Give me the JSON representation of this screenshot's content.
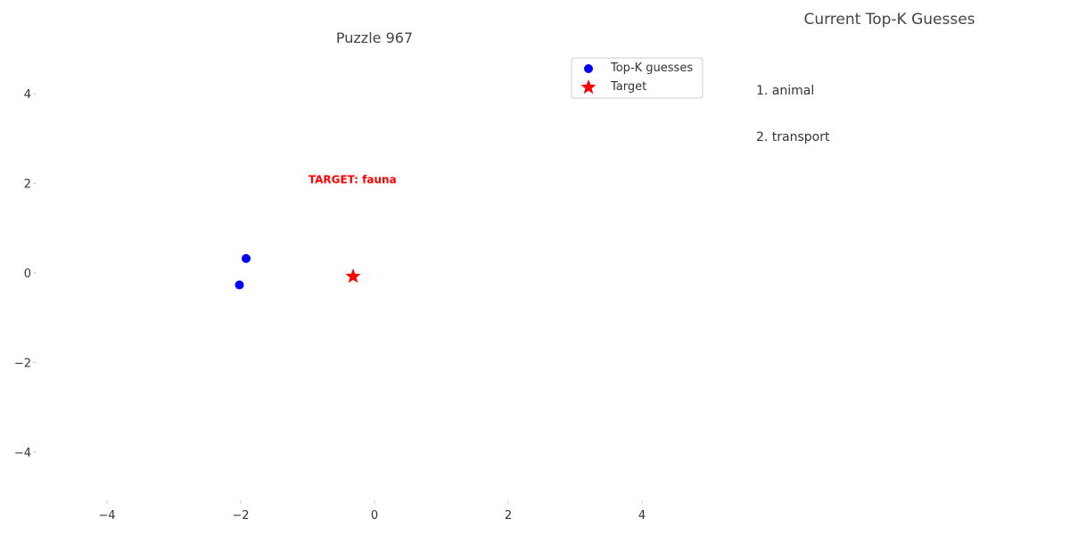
{
  "chart_data": {
    "type": "scatter",
    "title": "Puzzle 967",
    "xlim": [
      -5,
      5
    ],
    "ylim": [
      -5,
      5
    ],
    "x_ticks": [
      -4,
      -2,
      0,
      2,
      4
    ],
    "y_ticks": [
      4,
      2,
      0,
      -2,
      -4
    ],
    "x_tick_labels": [
      "−4",
      "−2",
      "0",
      "2",
      "4"
    ],
    "y_tick_labels": [
      "4",
      "2",
      "0",
      "−2",
      "−4"
    ],
    "grid": false,
    "legend_placement": "top-right",
    "series": [
      {
        "name": "Top-K guesses",
        "marker": "circle",
        "color": "#0000ff",
        "points": [
          {
            "x": -1.92,
            "y": 0.32
          },
          {
            "x": -2.02,
            "y": -0.27
          }
        ]
      },
      {
        "name": "Target",
        "marker": "star",
        "color": "#ff0000",
        "points": [
          {
            "x": -0.32,
            "y": -0.08
          }
        ]
      }
    ],
    "annotations": [
      {
        "text": "TARGET: fauna",
        "x": -0.33,
        "y": 2.0,
        "color": "#ff0000"
      }
    ]
  },
  "side_panel": {
    "title": "Current Top-K Guesses",
    "guesses": [
      "1. animal",
      "2. transport"
    ]
  }
}
